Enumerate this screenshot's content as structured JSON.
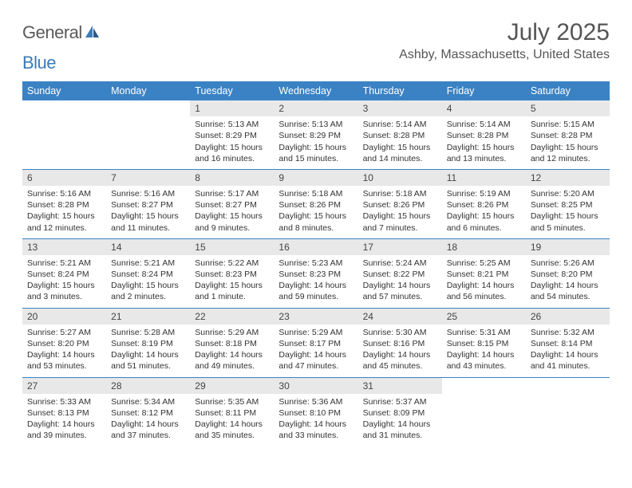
{
  "logo": {
    "text1": "General",
    "text2": "Blue"
  },
  "header": {
    "month_title": "July 2025",
    "location": "Ashby, Massachusetts, United States"
  },
  "colors": {
    "header_bg": "#3b82c4",
    "header_text": "#ffffff",
    "daynum_bg": "#e8e8e8",
    "border": "#3b82c4",
    "body_text": "#333333",
    "title_text": "#555555",
    "logo_gray": "#5a5a5a",
    "logo_blue": "#3b7bb8"
  },
  "day_names": [
    "Sunday",
    "Monday",
    "Tuesday",
    "Wednesday",
    "Thursday",
    "Friday",
    "Saturday"
  ],
  "weeks": [
    [
      {
        "empty": true
      },
      {
        "empty": true
      },
      {
        "day": "1",
        "sunrise": "Sunrise: 5:13 AM",
        "sunset": "Sunset: 8:29 PM",
        "daylight1": "Daylight: 15 hours",
        "daylight2": "and 16 minutes."
      },
      {
        "day": "2",
        "sunrise": "Sunrise: 5:13 AM",
        "sunset": "Sunset: 8:29 PM",
        "daylight1": "Daylight: 15 hours",
        "daylight2": "and 15 minutes."
      },
      {
        "day": "3",
        "sunrise": "Sunrise: 5:14 AM",
        "sunset": "Sunset: 8:28 PM",
        "daylight1": "Daylight: 15 hours",
        "daylight2": "and 14 minutes."
      },
      {
        "day": "4",
        "sunrise": "Sunrise: 5:14 AM",
        "sunset": "Sunset: 8:28 PM",
        "daylight1": "Daylight: 15 hours",
        "daylight2": "and 13 minutes."
      },
      {
        "day": "5",
        "sunrise": "Sunrise: 5:15 AM",
        "sunset": "Sunset: 8:28 PM",
        "daylight1": "Daylight: 15 hours",
        "daylight2": "and 12 minutes."
      }
    ],
    [
      {
        "day": "6",
        "sunrise": "Sunrise: 5:16 AM",
        "sunset": "Sunset: 8:28 PM",
        "daylight1": "Daylight: 15 hours",
        "daylight2": "and 12 minutes."
      },
      {
        "day": "7",
        "sunrise": "Sunrise: 5:16 AM",
        "sunset": "Sunset: 8:27 PM",
        "daylight1": "Daylight: 15 hours",
        "daylight2": "and 11 minutes."
      },
      {
        "day": "8",
        "sunrise": "Sunrise: 5:17 AM",
        "sunset": "Sunset: 8:27 PM",
        "daylight1": "Daylight: 15 hours",
        "daylight2": "and 9 minutes."
      },
      {
        "day": "9",
        "sunrise": "Sunrise: 5:18 AM",
        "sunset": "Sunset: 8:26 PM",
        "daylight1": "Daylight: 15 hours",
        "daylight2": "and 8 minutes."
      },
      {
        "day": "10",
        "sunrise": "Sunrise: 5:18 AM",
        "sunset": "Sunset: 8:26 PM",
        "daylight1": "Daylight: 15 hours",
        "daylight2": "and 7 minutes."
      },
      {
        "day": "11",
        "sunrise": "Sunrise: 5:19 AM",
        "sunset": "Sunset: 8:26 PM",
        "daylight1": "Daylight: 15 hours",
        "daylight2": "and 6 minutes."
      },
      {
        "day": "12",
        "sunrise": "Sunrise: 5:20 AM",
        "sunset": "Sunset: 8:25 PM",
        "daylight1": "Daylight: 15 hours",
        "daylight2": "and 5 minutes."
      }
    ],
    [
      {
        "day": "13",
        "sunrise": "Sunrise: 5:21 AM",
        "sunset": "Sunset: 8:24 PM",
        "daylight1": "Daylight: 15 hours",
        "daylight2": "and 3 minutes."
      },
      {
        "day": "14",
        "sunrise": "Sunrise: 5:21 AM",
        "sunset": "Sunset: 8:24 PM",
        "daylight1": "Daylight: 15 hours",
        "daylight2": "and 2 minutes."
      },
      {
        "day": "15",
        "sunrise": "Sunrise: 5:22 AM",
        "sunset": "Sunset: 8:23 PM",
        "daylight1": "Daylight: 15 hours",
        "daylight2": "and 1 minute."
      },
      {
        "day": "16",
        "sunrise": "Sunrise: 5:23 AM",
        "sunset": "Sunset: 8:23 PM",
        "daylight1": "Daylight: 14 hours",
        "daylight2": "and 59 minutes."
      },
      {
        "day": "17",
        "sunrise": "Sunrise: 5:24 AM",
        "sunset": "Sunset: 8:22 PM",
        "daylight1": "Daylight: 14 hours",
        "daylight2": "and 57 minutes."
      },
      {
        "day": "18",
        "sunrise": "Sunrise: 5:25 AM",
        "sunset": "Sunset: 8:21 PM",
        "daylight1": "Daylight: 14 hours",
        "daylight2": "and 56 minutes."
      },
      {
        "day": "19",
        "sunrise": "Sunrise: 5:26 AM",
        "sunset": "Sunset: 8:20 PM",
        "daylight1": "Daylight: 14 hours",
        "daylight2": "and 54 minutes."
      }
    ],
    [
      {
        "day": "20",
        "sunrise": "Sunrise: 5:27 AM",
        "sunset": "Sunset: 8:20 PM",
        "daylight1": "Daylight: 14 hours",
        "daylight2": "and 53 minutes."
      },
      {
        "day": "21",
        "sunrise": "Sunrise: 5:28 AM",
        "sunset": "Sunset: 8:19 PM",
        "daylight1": "Daylight: 14 hours",
        "daylight2": "and 51 minutes."
      },
      {
        "day": "22",
        "sunrise": "Sunrise: 5:29 AM",
        "sunset": "Sunset: 8:18 PM",
        "daylight1": "Daylight: 14 hours",
        "daylight2": "and 49 minutes."
      },
      {
        "day": "23",
        "sunrise": "Sunrise: 5:29 AM",
        "sunset": "Sunset: 8:17 PM",
        "daylight1": "Daylight: 14 hours",
        "daylight2": "and 47 minutes."
      },
      {
        "day": "24",
        "sunrise": "Sunrise: 5:30 AM",
        "sunset": "Sunset: 8:16 PM",
        "daylight1": "Daylight: 14 hours",
        "daylight2": "and 45 minutes."
      },
      {
        "day": "25",
        "sunrise": "Sunrise: 5:31 AM",
        "sunset": "Sunset: 8:15 PM",
        "daylight1": "Daylight: 14 hours",
        "daylight2": "and 43 minutes."
      },
      {
        "day": "26",
        "sunrise": "Sunrise: 5:32 AM",
        "sunset": "Sunset: 8:14 PM",
        "daylight1": "Daylight: 14 hours",
        "daylight2": "and 41 minutes."
      }
    ],
    [
      {
        "day": "27",
        "sunrise": "Sunrise: 5:33 AM",
        "sunset": "Sunset: 8:13 PM",
        "daylight1": "Daylight: 14 hours",
        "daylight2": "and 39 minutes."
      },
      {
        "day": "28",
        "sunrise": "Sunrise: 5:34 AM",
        "sunset": "Sunset: 8:12 PM",
        "daylight1": "Daylight: 14 hours",
        "daylight2": "and 37 minutes."
      },
      {
        "day": "29",
        "sunrise": "Sunrise: 5:35 AM",
        "sunset": "Sunset: 8:11 PM",
        "daylight1": "Daylight: 14 hours",
        "daylight2": "and 35 minutes."
      },
      {
        "day": "30",
        "sunrise": "Sunrise: 5:36 AM",
        "sunset": "Sunset: 8:10 PM",
        "daylight1": "Daylight: 14 hours",
        "daylight2": "and 33 minutes."
      },
      {
        "day": "31",
        "sunrise": "Sunrise: 5:37 AM",
        "sunset": "Sunset: 8:09 PM",
        "daylight1": "Daylight: 14 hours",
        "daylight2": "and 31 minutes."
      },
      {
        "empty": true
      },
      {
        "empty": true
      }
    ]
  ]
}
